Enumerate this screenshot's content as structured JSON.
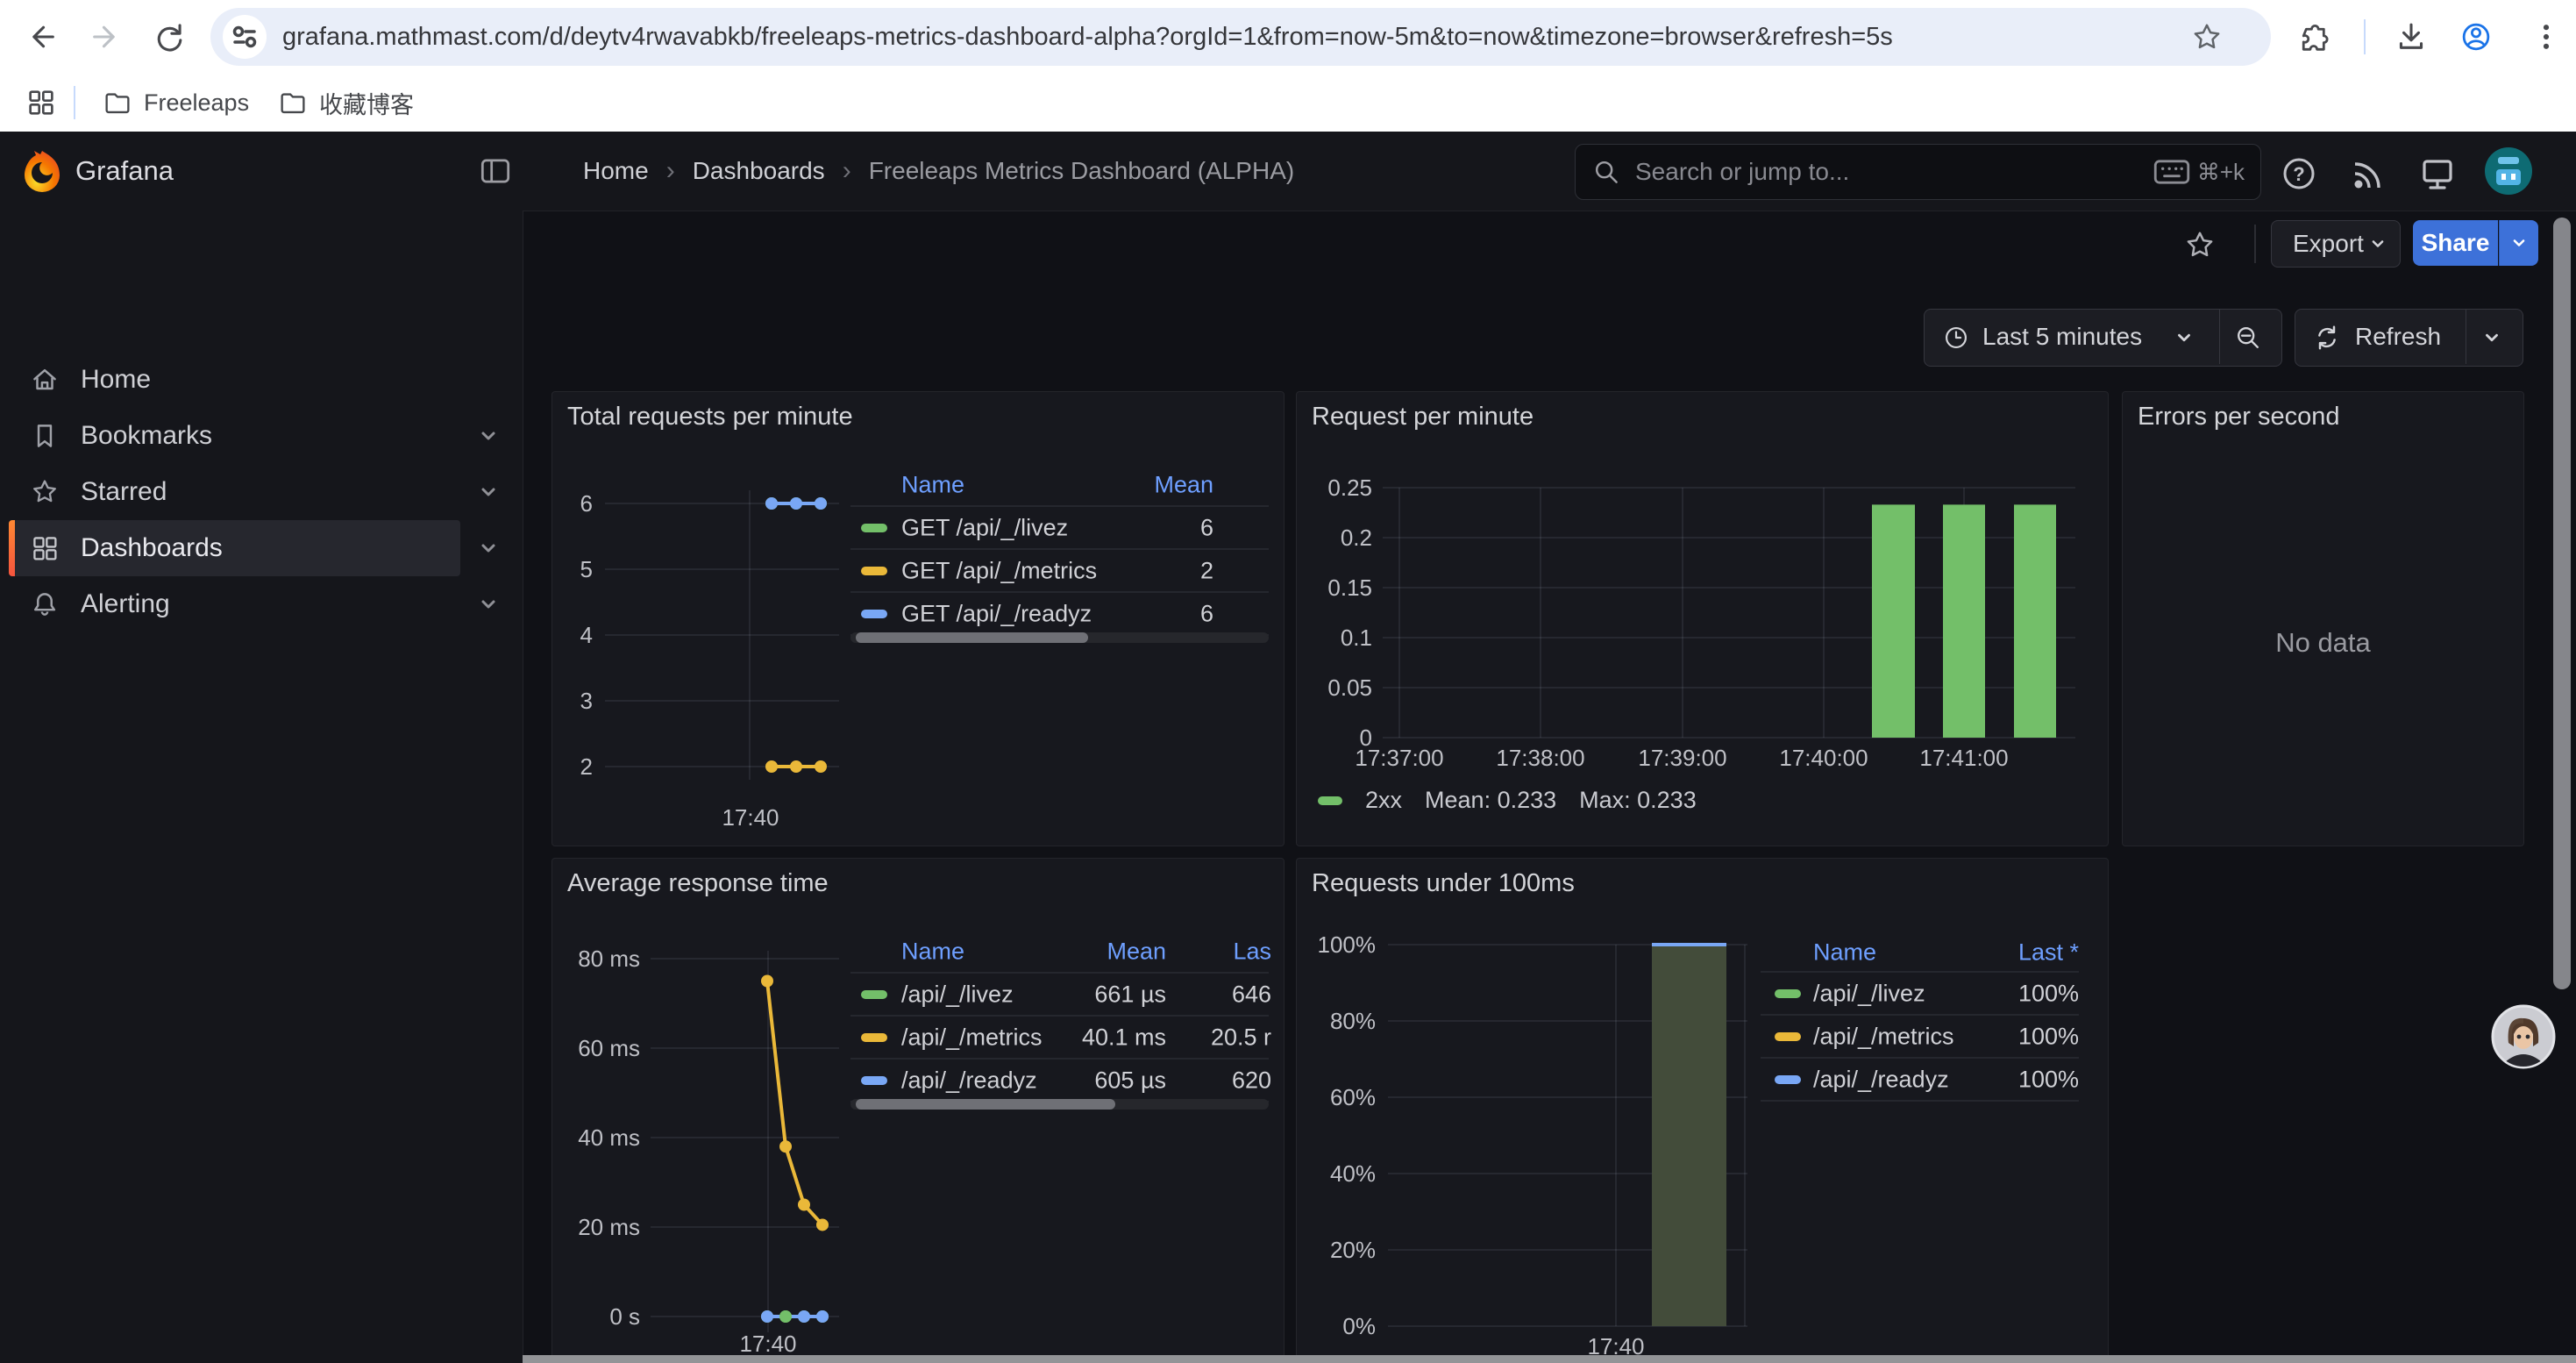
{
  "browser": {
    "url": "grafana.mathmast.com/d/deytv4rwavabkb/freeleaps-metrics-dashboard-alpha?orgId=1&from=now-5m&to=now&timezone=browser&refresh=5s",
    "bookmarks": [
      {
        "label": "Freeleaps"
      },
      {
        "label": "收藏博客"
      }
    ]
  },
  "nav": {
    "brand": "Grafana",
    "breadcrumb": [
      "Home",
      "Dashboards",
      "Freeleaps Metrics Dashboard (ALPHA)"
    ],
    "breadcrumb_sep": "›",
    "search_placeholder": "Search or jump to...",
    "search_shortcut": "⌘+k",
    "sidebar": [
      {
        "label": "Home"
      },
      {
        "label": "Bookmarks"
      },
      {
        "label": "Starred"
      },
      {
        "label": "Dashboards"
      },
      {
        "label": "Alerting"
      }
    ]
  },
  "toolbar": {
    "export_label": "Export",
    "share_label": "Share",
    "time_range_label": "Last 5 minutes",
    "refresh_label": "Refresh"
  },
  "panels": {
    "p1": {
      "title": "Total requests per minute"
    },
    "p2": {
      "title": "Request per minute"
    },
    "p3": {
      "title": "Errors per second",
      "no_data": "No data"
    },
    "p4": {
      "title": "Average response time"
    },
    "p5": {
      "title": "Requests under 100ms"
    }
  },
  "chart_data": [
    {
      "panel": "p1",
      "type": "line",
      "title": "Total requests per minute",
      "x_ticks": [
        "17:40"
      ],
      "y_ticks": [
        6,
        5,
        4,
        3,
        2
      ],
      "ylim": [
        2,
        6
      ],
      "grid": true,
      "legend_position": "right-table",
      "series": [
        {
          "name": "GET /api/_/livez",
          "color": "green",
          "values": [
            6,
            6,
            6
          ],
          "mean": 6
        },
        {
          "name": "GET /api/_/metrics",
          "color": "yellow",
          "values": [
            2,
            2,
            2
          ],
          "mean": 2
        },
        {
          "name": "GET /api/_/readyz",
          "color": "blue",
          "values": [
            6,
            6,
            6
          ],
          "mean": 6
        }
      ],
      "legend": {
        "columns": [
          "Name",
          "Mean"
        ],
        "rows": [
          [
            "GET /api/_/livez",
            "6"
          ],
          [
            "GET /api/_/metrics",
            "2"
          ],
          [
            "GET /api/_/readyz",
            "6"
          ]
        ]
      }
    },
    {
      "panel": "p2",
      "type": "bar",
      "title": "Request per minute",
      "x_ticks": [
        "17:37:00",
        "17:38:00",
        "17:39:00",
        "17:40:00",
        "17:41:00"
      ],
      "y_ticks": [
        0.25,
        0.2,
        0.15,
        0.1,
        0.05,
        0
      ],
      "ylim": [
        0,
        0.25
      ],
      "grid": true,
      "legend_position": "bottom",
      "series": [
        {
          "name": "2xx",
          "color": "green",
          "values": [
            0.233,
            0.233,
            0.233
          ],
          "mean": 0.233,
          "max": 0.233
        }
      ],
      "legend_stats": [
        "Mean: 0.233",
        "Max: 0.233"
      ]
    },
    {
      "panel": "p3",
      "type": "none",
      "title": "Errors per second",
      "message": "No data"
    },
    {
      "panel": "p4",
      "type": "line",
      "title": "Average response time",
      "x_ticks": [
        "17:40"
      ],
      "y_ticks": [
        "80 ms",
        "60 ms",
        "40 ms",
        "20 ms",
        "0 s"
      ],
      "y_tick_values": [
        80,
        60,
        40,
        20,
        0
      ],
      "ylim": [
        0,
        80
      ],
      "unit": "ms",
      "grid": true,
      "legend_position": "right-table",
      "series": [
        {
          "name": "/api/_/livez",
          "color": "green",
          "values": [
            0,
            0,
            0,
            0
          ],
          "mean": "661 µs",
          "last": "646"
        },
        {
          "name": "/api/_/metrics",
          "color": "yellow",
          "values": [
            75,
            38,
            25,
            20.5
          ],
          "mean": "40.1 ms",
          "last": "20.5 r"
        },
        {
          "name": "/api/_/readyz",
          "color": "blue",
          "values": [
            0,
            0,
            0,
            0
          ],
          "dot_colors": [
            "blue",
            "green",
            "blue",
            "blue"
          ],
          "mean": "605 µs",
          "last": "620"
        }
      ],
      "legend": {
        "columns": [
          "Name",
          "Mean",
          "Las"
        ],
        "rows": [
          [
            "/api/_/livez",
            "661 µs",
            "646"
          ],
          [
            "/api/_/metrics",
            "40.1 ms",
            "20.5 r"
          ],
          [
            "/api/_/readyz",
            "605 µs",
            "620"
          ]
        ]
      }
    },
    {
      "panel": "p5",
      "type": "area",
      "title": "Requests under 100ms",
      "x_ticks": [
        "17:40"
      ],
      "y_ticks": [
        "100%",
        "80%",
        "60%",
        "40%",
        "20%",
        "0%"
      ],
      "y_tick_values": [
        100,
        80,
        60,
        40,
        20,
        0
      ],
      "ylim": [
        0,
        100
      ],
      "bar_value": 100,
      "grid": true,
      "legend_position": "right-table",
      "series": [
        {
          "name": "/api/_/livez",
          "color": "green",
          "last": "100%"
        },
        {
          "name": "/api/_/metrics",
          "color": "yellow",
          "last": "100%"
        },
        {
          "name": "/api/_/readyz",
          "color": "blue",
          "last": "100%"
        }
      ],
      "legend": {
        "columns": [
          "Name",
          "Last *"
        ],
        "rows": [
          [
            "/api/_/livez",
            "100%"
          ],
          [
            "/api/_/metrics",
            "100%"
          ],
          [
            "/api/_/readyz",
            "100%"
          ]
        ]
      }
    }
  ],
  "colors": {
    "green": "#73bf69",
    "yellow": "#eab839",
    "blue": "#79a7f5",
    "share_blue": "#3d71d9",
    "link_blue": "#6e9fff",
    "active_orange": "#ff8833",
    "area_fill": "#434c3a"
  }
}
